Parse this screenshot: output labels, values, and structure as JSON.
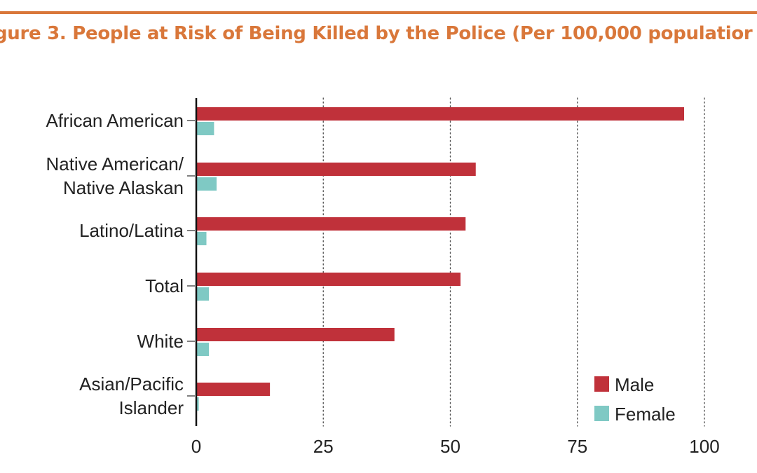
{
  "header": {
    "title": "gure 3. People at Risk of Being Killed by the Police (Per 100,000 populatior",
    "accent_color": "#d9773a"
  },
  "chart_data": {
    "type": "bar",
    "orientation": "horizontal",
    "categories": [
      "African American",
      "Native American/\nNative Alaskan",
      "Latino/Latina",
      "Total",
      "White",
      "Asian/Pacific\nIslander"
    ],
    "series": [
      {
        "name": "Male",
        "color": "#c0313a",
        "values": [
          96,
          55,
          53,
          52,
          39,
          14.5
        ]
      },
      {
        "name": "Female",
        "color": "#7fc9c4",
        "values": [
          3.5,
          4,
          2,
          2.5,
          2.5,
          0.5
        ]
      }
    ],
    "xlim": [
      0,
      100
    ],
    "xticks": [
      "0",
      "25",
      "50",
      "75",
      "100"
    ],
    "grid": "vertical dotted",
    "legend": "bottom-right"
  }
}
